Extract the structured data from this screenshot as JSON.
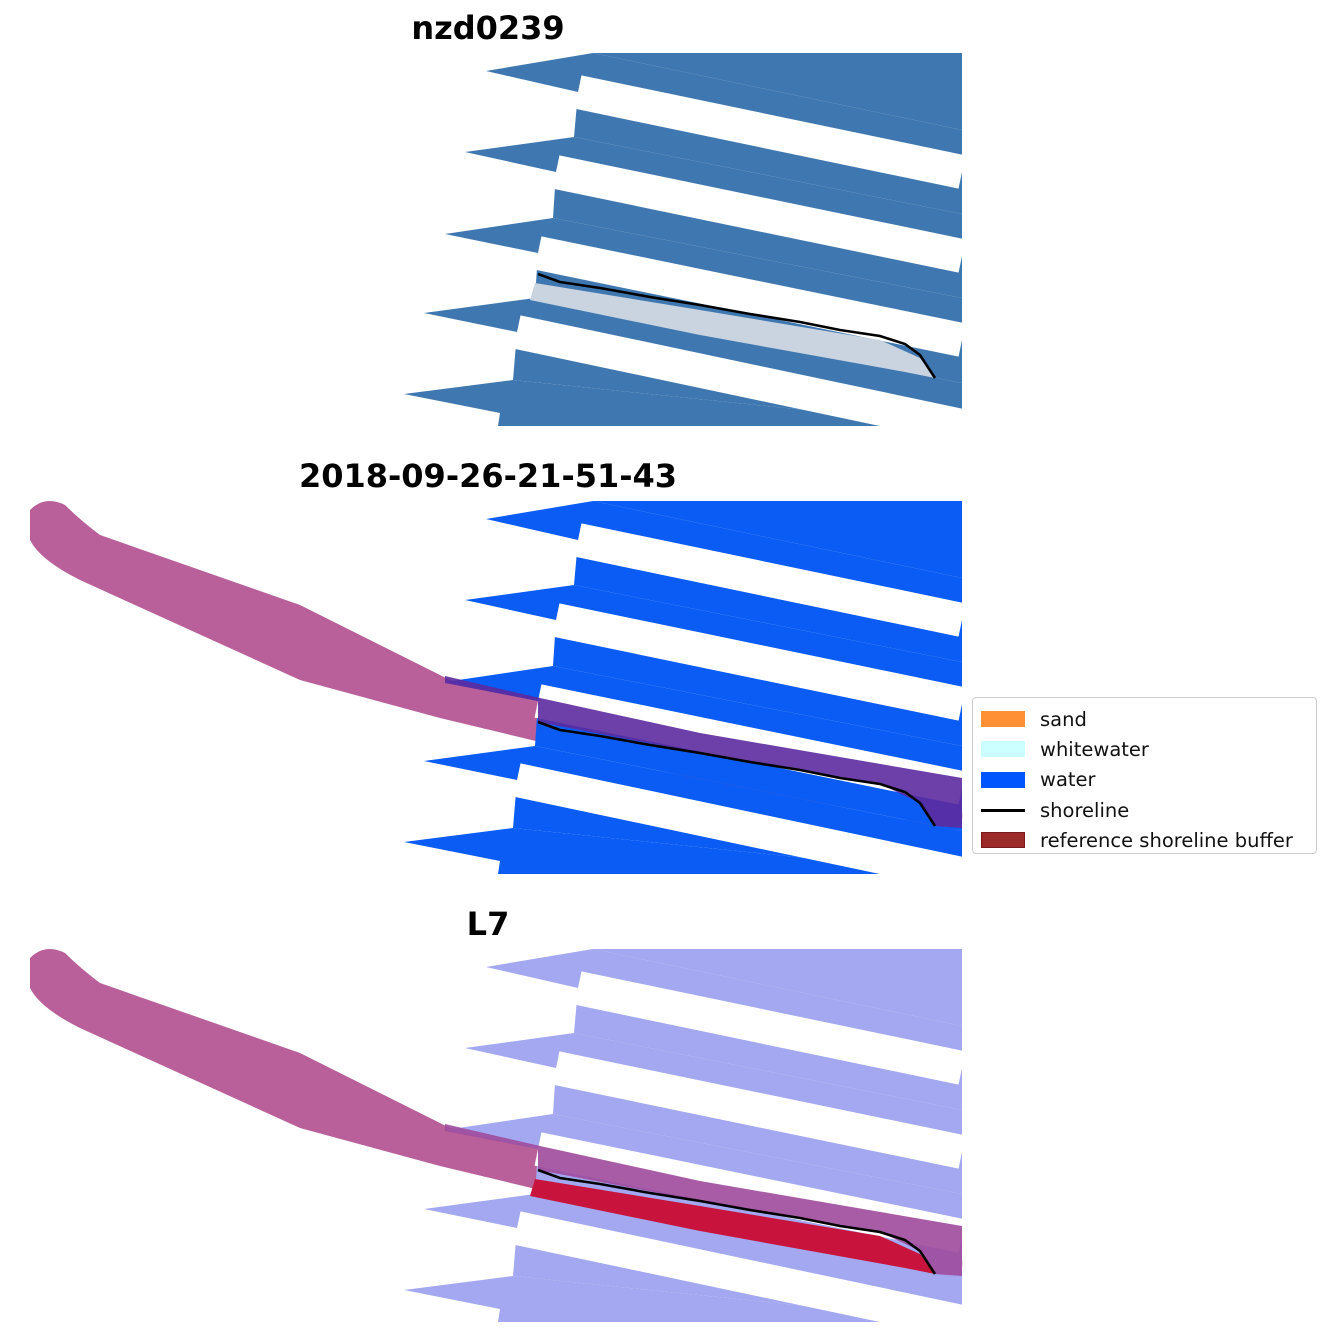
{
  "panels": [
    {
      "title": "nzd0239",
      "kind": "rgb"
    },
    {
      "title": "2018-09-26-21-51-43",
      "kind": "classified"
    },
    {
      "title": "L7",
      "kind": "index"
    }
  ],
  "legend": {
    "items": [
      {
        "label": "sand",
        "color": "#ff9033",
        "type": "patch"
      },
      {
        "label": "whitewater",
        "color": "#ccffff",
        "type": "patch"
      },
      {
        "label": "water",
        "color": "#0055ff",
        "type": "patch"
      },
      {
        "label": "shoreline",
        "color": "#000000",
        "type": "line"
      },
      {
        "label": "reference shoreline buffer",
        "color": "#9b2a2a",
        "type": "patch"
      }
    ]
  },
  "colors": {
    "rgb_water": "#3f78b0",
    "rgb_water_light": "#5c98c4",
    "class_water": "#0a5cf5",
    "index_water": "#a3a8f0",
    "buffer": "#b9609a",
    "buffer_overlap": "#5c2aa0",
    "index_beach": "#c8143c",
    "shoreline": "#000000"
  }
}
